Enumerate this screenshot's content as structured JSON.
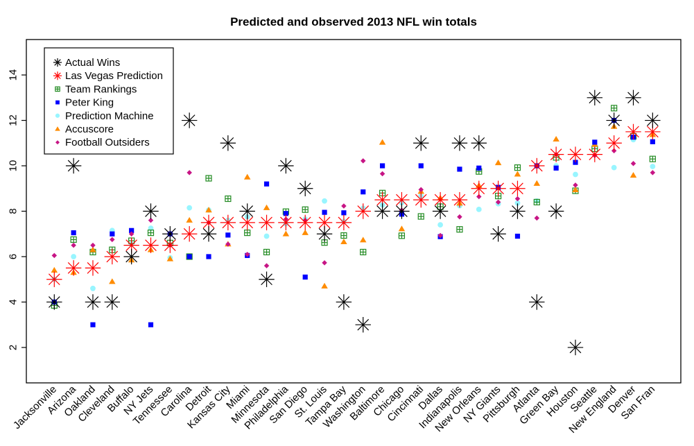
{
  "chart_data": {
    "type": "scatter",
    "title": "Predicted and observed 2013 NFL win totals",
    "xlabel": "",
    "ylabel": "",
    "ylim": [
      0.44,
      15.56
    ],
    "yticks": [
      2,
      4,
      6,
      8,
      10,
      12,
      14
    ],
    "grid": false,
    "legend_position": "top-left",
    "categories": [
      "Jacksonville",
      "Arizona",
      "Oakland",
      "Cleveland",
      "Buffalo",
      "NY Jets",
      "Tennessee",
      "Carolina",
      "Detroit",
      "Kansas City",
      "Miami",
      "Minnesota",
      "Philadelphia",
      "San Diego",
      "St. Louis",
      "Tampa Bay",
      "Washington",
      "Baltimore",
      "Chicago",
      "Cincinnati",
      "Dallas",
      "Indianapolis",
      "New Orleans",
      "NY Giants",
      "Pittsburgh",
      "Atlanta",
      "Green Bay",
      "Houston",
      "Seattle",
      "New England",
      "Denver",
      "San Fran"
    ],
    "series": [
      {
        "name": "Prediction Machine",
        "marker": "circle",
        "color": "#98F5FF",
        "values": [
          5.0,
          6.0,
          4.6,
          7.15,
          6.55,
          7.25,
          5.95,
          8.15,
          8.05,
          7.6,
          7.75,
          6.9,
          7.45,
          7.65,
          8.45,
          7.55,
          8.13,
          8.28,
          8.38,
          8.67,
          7.4,
          8.24,
          8.08,
          8.33,
          8.36,
          8.45,
          10.0,
          9.62,
          10.9,
          9.92,
          11.15,
          9.97
        ]
      },
      {
        "name": "Team Rankings",
        "marker": "square-plus",
        "color": "#228B22",
        "values": [
          3.85,
          6.75,
          6.2,
          6.3,
          6.7,
          7.05,
          6.6,
          6.0,
          9.45,
          8.55,
          7.05,
          6.2,
          7.98,
          8.07,
          6.62,
          6.93,
          6.2,
          8.8,
          6.92,
          7.77,
          8.2,
          7.2,
          9.75,
          8.67,
          9.92,
          8.4,
          10.37,
          8.9,
          10.75,
          12.54,
          11.3,
          10.3
        ]
      },
      {
        "name": "Accuscore",
        "marker": "triangle",
        "color": "#FF8C00",
        "values": [
          5.4,
          5.3,
          6.3,
          4.9,
          5.85,
          6.3,
          5.9,
          7.6,
          8.05,
          6.55,
          9.5,
          8.15,
          7.0,
          7.05,
          4.7,
          6.65,
          6.73,
          11.03,
          7.22,
          8.87,
          8.58,
          8.35,
          9.13,
          10.13,
          9.63,
          9.22,
          11.17,
          8.94,
          10.94,
          11.73,
          9.58,
          11.37
        ]
      },
      {
        "name": "Peter King",
        "marker": "square",
        "color": "#0000FF",
        "values": [
          4.0,
          7.05,
          3.0,
          7.0,
          7.15,
          3.0,
          7.0,
          6.0,
          6.0,
          6.95,
          6.05,
          9.2,
          7.9,
          5.1,
          7.95,
          7.93,
          8.85,
          10.0,
          7.87,
          10.0,
          6.88,
          9.85,
          9.9,
          9.05,
          6.9,
          10.0,
          9.9,
          10.15,
          11.04,
          12.0,
          11.26,
          11.06
        ]
      },
      {
        "name": "Football Outsiders",
        "marker": "diamond",
        "color": "#C71585",
        "values": [
          6.05,
          6.5,
          6.5,
          6.75,
          7.0,
          7.6,
          6.5,
          9.7,
          7.5,
          6.55,
          6.1,
          5.6,
          7.65,
          7.6,
          5.73,
          8.23,
          10.22,
          9.65,
          8.05,
          8.95,
          6.93,
          7.75,
          8.64,
          8.4,
          8.55,
          7.7,
          10.5,
          9.15,
          10.45,
          10.66,
          10.1,
          9.7
        ]
      },
      {
        "name": "Las Vegas Prediction",
        "marker": "asterisk",
        "color": "#FF0000",
        "values": [
          5.0,
          5.5,
          5.5,
          6.0,
          6.5,
          6.5,
          6.5,
          7.0,
          7.5,
          7.5,
          7.5,
          7.5,
          7.5,
          7.5,
          7.5,
          7.5,
          8.0,
          8.5,
          8.5,
          8.5,
          8.5,
          8.5,
          9.0,
          9.0,
          9.0,
          10.0,
          10.5,
          10.5,
          10.5,
          11.0,
          11.5,
          11.5
        ]
      },
      {
        "name": "Actual Wins",
        "marker": "asterisk",
        "color": "#000000",
        "values": [
          4,
          10,
          4,
          4,
          6,
          8,
          7,
          12,
          7,
          11,
          8,
          5,
          10,
          9,
          7,
          4,
          3,
          8,
          8,
          11,
          8,
          11,
          11,
          7,
          8,
          4,
          8,
          2,
          13,
          12,
          13,
          12
        ]
      }
    ],
    "legend_order": [
      "Actual Wins",
      "Las Vegas Prediction",
      "Team Rankings",
      "Peter King",
      "Prediction Machine",
      "Accuscore",
      "Football Outsiders"
    ]
  }
}
